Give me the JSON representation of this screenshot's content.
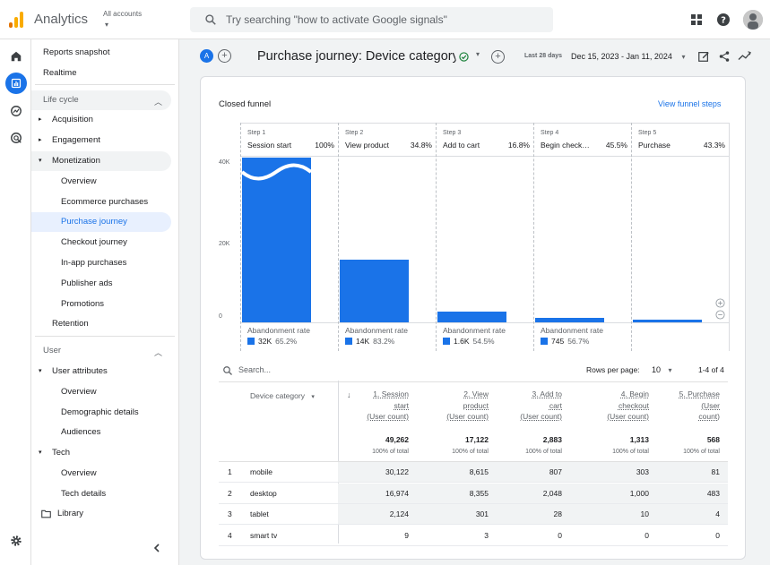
{
  "app": {
    "title": "Analytics",
    "account_label": "All accounts",
    "account_caret": "▾"
  },
  "search": {
    "placeholder": "Try searching \"how to activate Google signals\""
  },
  "nav": {
    "items": [
      {
        "label": "Reports snapshot"
      },
      {
        "label": "Realtime"
      },
      {
        "label": "Life cycle"
      },
      {
        "label": "Acquisition"
      },
      {
        "label": "Engagement"
      },
      {
        "label": "Monetization"
      },
      {
        "label": "Overview"
      },
      {
        "label": "Ecommerce purchases"
      },
      {
        "label": "Purchase journey"
      },
      {
        "label": "Checkout journey"
      },
      {
        "label": "In-app purchases"
      },
      {
        "label": "Publisher ads"
      },
      {
        "label": "Promotions"
      },
      {
        "label": "Retention"
      },
      {
        "label": "User"
      },
      {
        "label": "User attributes"
      },
      {
        "label": "Overview"
      },
      {
        "label": "Demographic details"
      },
      {
        "label": "Audiences"
      },
      {
        "label": "Tech"
      },
      {
        "label": "Overview"
      },
      {
        "label": "Tech details"
      },
      {
        "label": "Library"
      }
    ]
  },
  "report": {
    "comparison_chip": "A",
    "title": "Purchase journey: Device category",
    "date_label": "Last 28 days",
    "date_range": "Dec 15, 2023 - Jan 11, 2024"
  },
  "card": {
    "title": "Closed funnel",
    "link": "View funnel steps",
    "y_ticks": [
      "40K",
      "20K",
      "0"
    ],
    "abandon_label": "Abandonment rate",
    "steps": [
      {
        "num": "Step 1",
        "name": "Session start",
        "pct": "100%",
        "ab_count": "32K",
        "ab_pct": "65.2%",
        "value": 49262
      },
      {
        "num": "Step 2",
        "name": "View product",
        "pct": "34.8%",
        "ab_count": "14K",
        "ab_pct": "83.2%",
        "value": 17122
      },
      {
        "num": "Step 3",
        "name": "Add to cart",
        "pct": "16.8%",
        "ab_count": "1.6K",
        "ab_pct": "54.5%",
        "value": 2883
      },
      {
        "num": "Step 4",
        "name": "Begin check…",
        "pct": "45.5%",
        "ab_count": "745",
        "ab_pct": "56.7%",
        "value": 1313
      },
      {
        "num": "Step 5",
        "name": "Purchase",
        "pct": "43.3%",
        "value": 568
      }
    ]
  },
  "table": {
    "search_placeholder": "Search...",
    "rows_per_page_label": "Rows per page:",
    "rows_per_page": "10",
    "paging": "1-4 of 4",
    "dimension_header": "Device category",
    "sort_arrow": "↓",
    "columns": [
      {
        "l1": "1. Session",
        "l2": "start",
        "l3": "(User count)",
        "total": "49,262",
        "sub": "100% of total"
      },
      {
        "l1": "2. View",
        "l2": "product",
        "l3": "(User count)",
        "total": "17,122",
        "sub": "100% of total"
      },
      {
        "l1": "3. Add to",
        "l2": "cart",
        "l3": "(User count)",
        "total": "2,883",
        "sub": "100% of total"
      },
      {
        "l1": "4. Begin",
        "l2": "checkout",
        "l3": "(User count)",
        "total": "1,313",
        "sub": "100% of total"
      },
      {
        "l1": "5. Purchase",
        "l2": "(User",
        "l3": "count)",
        "total": "568",
        "sub": "100% of total"
      }
    ],
    "rows": [
      {
        "n": "1",
        "device": "mobile",
        "v": [
          "30,122",
          "8,615",
          "807",
          "303",
          "81"
        ]
      },
      {
        "n": "2",
        "device": "desktop",
        "v": [
          "16,974",
          "8,355",
          "2,048",
          "1,000",
          "483"
        ]
      },
      {
        "n": "3",
        "device": "tablet",
        "v": [
          "2,124",
          "301",
          "28",
          "10",
          "4"
        ]
      },
      {
        "n": "4",
        "device": "smart tv",
        "v": [
          "9",
          "3",
          "0",
          "0",
          "0"
        ]
      }
    ]
  },
  "chart_data": {
    "type": "bar",
    "categories": [
      "Session start",
      "View product",
      "Add to cart",
      "Begin checkout",
      "Purchase"
    ],
    "values": [
      49262,
      17122,
      2883,
      1313,
      568
    ],
    "ylim": [
      0,
      45000
    ],
    "y_ticks": [
      "0",
      "20K",
      "40K"
    ],
    "abandonment": [
      {
        "count": "32K",
        "rate": "65.2%"
      },
      {
        "count": "14K",
        "rate": "83.2%"
      },
      {
        "count": "1.6K",
        "rate": "54.5%"
      },
      {
        "count": "745",
        "rate": "56.7%"
      }
    ]
  },
  "colors": {
    "accent": "#1a73e8",
    "active_nav_bg": "#e8f0fe",
    "logo_orange": "#f9ab00",
    "logo_dark": "#e37400"
  },
  "icons": [
    "search-icon",
    "apps-grid-icon",
    "help-icon",
    "home-icon",
    "reports-icon",
    "explore-icon",
    "advertising-icon",
    "settings-icon",
    "collapse-chevron-icon",
    "library-folder-icon",
    "customize-icon",
    "share-icon",
    "insights-icon",
    "check-circle-icon",
    "zoom-in-icon",
    "zoom-out-icon"
  ]
}
